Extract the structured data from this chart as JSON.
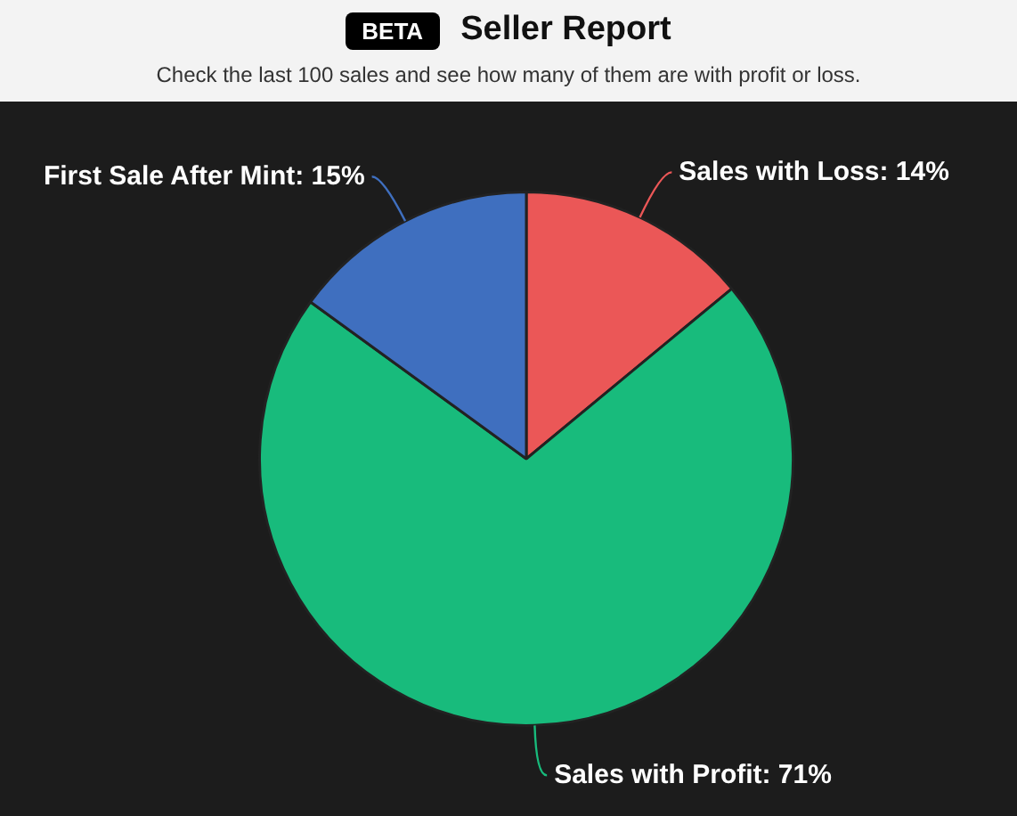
{
  "chart_data": {
    "type": "pie",
    "title": "Seller Report",
    "subtitle": "Check the last 100 sales and see how many of them are with profit or loss.",
    "annotations": [
      "BETA"
    ],
    "categories": [
      "Sales with Loss",
      "Sales with Profit",
      "First Sale After Mint"
    ],
    "values": [
      14,
      71,
      15
    ],
    "value_labels": [
      "14%",
      "71%",
      "15%"
    ],
    "colors": [
      "#eb5757",
      "#18bb7c",
      "#3f6fbf"
    ],
    "legend": false
  }
}
